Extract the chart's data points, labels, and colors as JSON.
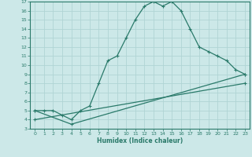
{
  "xlabel": "Humidex (Indice chaleur)",
  "xlim": [
    -0.5,
    23.5
  ],
  "ylim": [
    3,
    17
  ],
  "yticks": [
    3,
    4,
    5,
    6,
    7,
    8,
    9,
    10,
    11,
    12,
    13,
    14,
    15,
    16,
    17
  ],
  "xticks": [
    0,
    1,
    2,
    3,
    4,
    5,
    6,
    7,
    8,
    9,
    10,
    11,
    12,
    13,
    14,
    15,
    16,
    17,
    18,
    19,
    20,
    21,
    22,
    23
  ],
  "bg_color": "#cce8e8",
  "line_color": "#2a7a6a",
  "grid_color": "#b0d4d4",
  "line1_x": [
    0,
    1,
    2,
    3,
    4,
    5,
    6,
    7,
    8,
    9,
    10,
    11,
    12,
    13,
    14,
    15,
    16,
    17,
    18,
    19,
    20,
    21,
    22,
    23
  ],
  "line1_y": [
    5,
    5,
    5,
    4.5,
    4,
    5,
    5.5,
    8,
    10.5,
    11,
    13,
    15,
    16.5,
    17,
    16.5,
    17,
    16,
    14,
    12,
    11.5,
    11,
    10.5,
    9.5,
    9
  ],
  "line2_x": [
    0,
    4,
    23
  ],
  "line2_y": [
    5,
    3.5,
    9
  ],
  "line3_x": [
    0,
    23
  ],
  "line3_y": [
    4,
    8
  ],
  "marker": "+"
}
